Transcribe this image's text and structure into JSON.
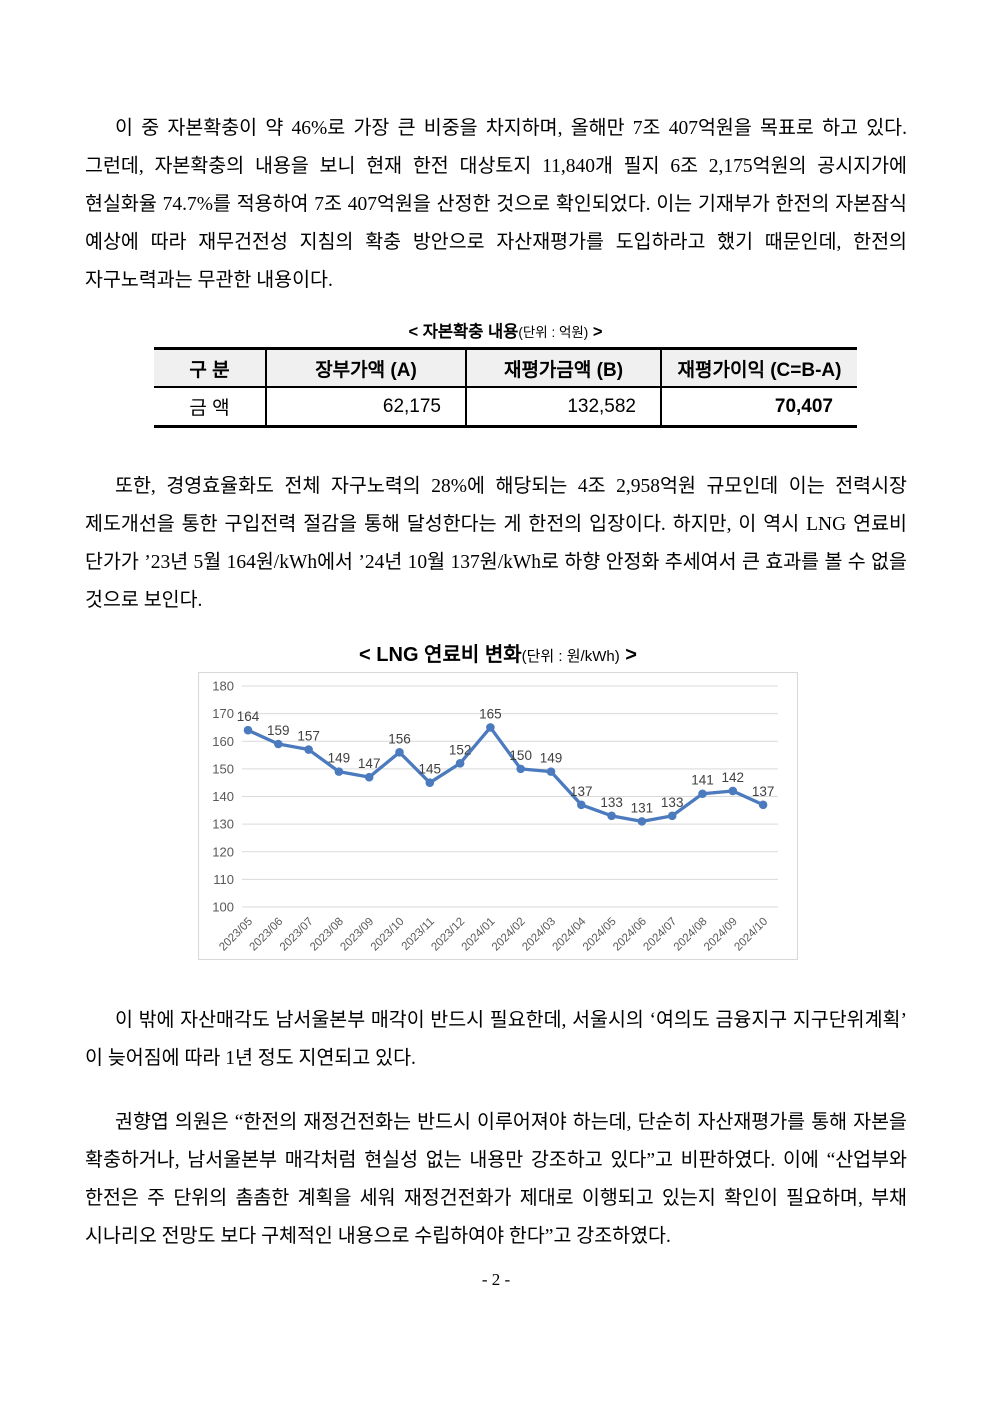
{
  "page": {
    "paragraphs": [
      "이 중 자본확충이 약 46%로 가장 큰 비중을 차지하며, 올해만 7조 407억원을 목표로 하고 있다. 그런데, 자본확충의 내용을 보니 현재 한전 대상토지 11,840개 필지 6조 2,175억원의 공시지가에 현실화율 74.7%를 적용하여 7조 407억원을 산정한 것으로 확인되었다. 이는 기재부가 한전의 자본잠식 예상에 따라 재무건전성 지침의 확충 방안으로 자산재평가를 도입하라고 했기 때문인데, 한전의 자구노력과는 무관한 내용이다.",
      "또한, 경영효율화도 전체 자구노력의 28%에 해당되는 4조 2,958억원 규모인데 이는 전력시장 제도개선을 통한 구입전력 절감을 통해 달성한다는 게 한전의 입장이다. 하지만, 이 역시 LNG 연료비 단가가 ’23년 5월 164원/kWh에서 ’24년 10월 137원/kWh로 하향 안정화 추세여서 큰 효과를 볼 수 없을 것으로 보인다.",
      "이 밖에 자산매각도 남서울본부 매각이 반드시 필요한데, 서울시의 ‘여의도 금융지구 지구단위계획’ 이 늦어짐에 따라 1년 정도 지연되고 있다.",
      "권향엽 의원은 “한전의 재정건전화는 반드시 이루어져야 하는데, 단순히 자산재평가를 통해 자본을 확충하거나, 남서울본부 매각처럼 현실성 없는 내용만 강조하고 있다”고 비판하였다. 이에 “산업부와 한전은 주 단위의 촘촘한 계획을 세워 재정건전화가 제대로 이행되고 있는지 확인이 필요하며, 부채 시나리오 전망도 보다 구체적인 내용으로 수립하여야 한다”고 강조하였다."
    ],
    "footer": "- 2 -"
  },
  "capital_table": {
    "title_main": "< 자본확충 내용",
    "title_unit": "(단위 : 억원)",
    "title_close": " >",
    "headers": [
      "구 분",
      "장부가액 (A)",
      "재평가금액 (B)",
      "재평가이익 (C=B-A)"
    ],
    "row_label": "금 액",
    "values": [
      "62,175",
      "132,582",
      "70,407"
    ]
  },
  "chart_data": {
    "type": "line",
    "title_main": "< LNG 연료비 변화",
    "title_unit": "(단위 : 원/kWh)",
    "title_close": " >",
    "categories": [
      "2023/05",
      "2023/06",
      "2023/07",
      "2023/08",
      "2023/09",
      "2023/10",
      "2023/11",
      "2023/12",
      "2024/01",
      "2024/02",
      "2024/03",
      "2024/04",
      "2024/05",
      "2024/06",
      "2024/07",
      "2024/08",
      "2024/09",
      "2024/10"
    ],
    "values": [
      164,
      159,
      157,
      149,
      147,
      156,
      145,
      152,
      165,
      150,
      149,
      137,
      133,
      131,
      133,
      141,
      142,
      137
    ],
    "ylim": [
      100,
      180
    ],
    "ytick_step": 10,
    "grid": true,
    "legend": "none",
    "line_color": "#4b7bbe",
    "grid_color": "#d9d9d9",
    "frame_color": "#d9d9d9",
    "label_color": "#404040",
    "axis_label_color": "#595959"
  }
}
